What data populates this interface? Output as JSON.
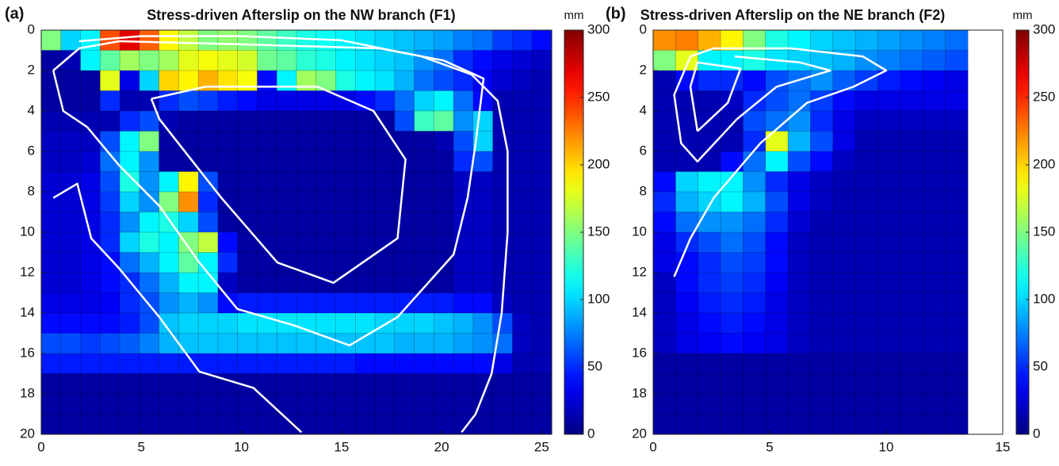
{
  "chart_data": [
    {
      "type": "heatmap",
      "panel_label": "(a)",
      "title": "Stress-driven Afterslip on the NW branch (F1)",
      "colorbar_label": "mm",
      "colormap": "jet",
      "y_reversed": true,
      "xlim": [
        0,
        25.5
      ],
      "ylim": [
        0,
        20
      ],
      "grid_xlim": [
        0,
        25.5
      ],
      "xticks": [
        0,
        5,
        10,
        15,
        20,
        25
      ],
      "yticks": [
        0,
        2,
        4,
        6,
        8,
        10,
        12,
        14,
        16,
        18,
        20
      ],
      "clim": [
        0,
        300
      ],
      "cticks": [
        0,
        50,
        100,
        150,
        200,
        250,
        300
      ],
      "z": [
        [
          150,
          100,
          110,
          240,
          270,
          235,
          190,
          170,
          150,
          155,
          150,
          140,
          130,
          120,
          115,
          110,
          105,
          100,
          95,
          90,
          85,
          75,
          70,
          55,
          50,
          40
        ],
        [
          10,
          15,
          110,
          140,
          160,
          150,
          160,
          180,
          185,
          180,
          175,
          145,
          140,
          125,
          120,
          110,
          105,
          100,
          95,
          80,
          70,
          50,
          40,
          30,
          25,
          20
        ],
        [
          10,
          10,
          10,
          180,
          30,
          100,
          200,
          190,
          210,
          195,
          185,
          40,
          110,
          160,
          150,
          120,
          110,
          105,
          90,
          70,
          60,
          50,
          35,
          25,
          20,
          15
        ],
        [
          10,
          10,
          10,
          50,
          15,
          15,
          50,
          60,
          55,
          45,
          40,
          30,
          30,
          30,
          30,
          30,
          40,
          50,
          70,
          100,
          110,
          70,
          40,
          15,
          15,
          15
        ],
        [
          15,
          15,
          15,
          15,
          50,
          60,
          15,
          10,
          10,
          10,
          10,
          10,
          10,
          10,
          10,
          10,
          10,
          10,
          60,
          130,
          140,
          80,
          100,
          15,
          15,
          15
        ],
        [
          20,
          20,
          20,
          60,
          110,
          150,
          10,
          10,
          10,
          10,
          10,
          10,
          10,
          10,
          10,
          10,
          10,
          10,
          10,
          10,
          15,
          60,
          100,
          15,
          15,
          15
        ],
        [
          20,
          20,
          25,
          70,
          110,
          80,
          10,
          10,
          10,
          10,
          10,
          10,
          10,
          10,
          10,
          10,
          10,
          10,
          10,
          10,
          10,
          50,
          60,
          15,
          15,
          15
        ],
        [
          25,
          25,
          30,
          60,
          120,
          80,
          110,
          190,
          60,
          10,
          10,
          10,
          10,
          10,
          10,
          10,
          10,
          10,
          10,
          10,
          10,
          20,
          20,
          15,
          15,
          15
        ],
        [
          25,
          25,
          30,
          55,
          100,
          80,
          150,
          220,
          50,
          10,
          10,
          10,
          10,
          10,
          10,
          10,
          10,
          10,
          10,
          10,
          10,
          20,
          20,
          15,
          15,
          15
        ],
        [
          25,
          25,
          30,
          50,
          80,
          110,
          120,
          100,
          60,
          10,
          10,
          10,
          10,
          10,
          10,
          10,
          10,
          10,
          10,
          10,
          10,
          20,
          20,
          15,
          15,
          15
        ],
        [
          25,
          25,
          30,
          50,
          100,
          120,
          110,
          150,
          170,
          40,
          10,
          10,
          10,
          10,
          10,
          10,
          10,
          10,
          10,
          10,
          10,
          20,
          20,
          15,
          15,
          15
        ],
        [
          25,
          25,
          30,
          40,
          70,
          90,
          110,
          140,
          110,
          50,
          10,
          10,
          10,
          10,
          10,
          10,
          10,
          10,
          10,
          10,
          10,
          20,
          20,
          15,
          15,
          15
        ],
        [
          25,
          25,
          30,
          40,
          50,
          70,
          90,
          110,
          110,
          20,
          10,
          10,
          10,
          10,
          10,
          10,
          10,
          10,
          10,
          10,
          10,
          20,
          20,
          15,
          15,
          15
        ],
        [
          30,
          30,
          30,
          35,
          50,
          60,
          80,
          90,
          80,
          40,
          45,
          45,
          45,
          45,
          45,
          45,
          45,
          45,
          45,
          45,
          45,
          40,
          40,
          20,
          15,
          15
        ],
        [
          40,
          40,
          40,
          40,
          45,
          60,
          95,
          100,
          100,
          100,
          105,
          105,
          105,
          105,
          105,
          105,
          105,
          100,
          100,
          100,
          95,
          90,
          80,
          60,
          20,
          15
        ],
        [
          60,
          60,
          55,
          60,
          65,
          75,
          90,
          95,
          95,
          95,
          95,
          95,
          95,
          95,
          95,
          95,
          95,
          95,
          90,
          90,
          90,
          85,
          80,
          70,
          20,
          15
        ],
        [
          45,
          45,
          45,
          45,
          45,
          45,
          45,
          45,
          45,
          45,
          45,
          45,
          45,
          45,
          45,
          45,
          40,
          40,
          40,
          40,
          40,
          40,
          40,
          30,
          15,
          15
        ],
        [
          10,
          10,
          10,
          10,
          10,
          10,
          10,
          10,
          10,
          10,
          10,
          10,
          10,
          10,
          10,
          10,
          10,
          10,
          10,
          10,
          10,
          10,
          10,
          10,
          10,
          10
        ],
        [
          10,
          10,
          10,
          10,
          10,
          10,
          10,
          10,
          10,
          10,
          10,
          10,
          10,
          10,
          10,
          10,
          10,
          10,
          10,
          10,
          10,
          10,
          10,
          10,
          10,
          10
        ],
        [
          10,
          10,
          10,
          10,
          10,
          10,
          10,
          10,
          10,
          10,
          10,
          10,
          10,
          10,
          10,
          10,
          10,
          10,
          10,
          10,
          10,
          10,
          10,
          10,
          10,
          10
        ]
      ],
      "contours": [
        {
          "x": [
            0.6,
            1.8,
            2.5,
            3.9,
            5.9,
            7.9,
            10.6,
            13
          ],
          "y": [
            8.3,
            7.6,
            10.3,
            11.8,
            14.2,
            16.9,
            17.7,
            19.9
          ]
        },
        {
          "x": [
            0.6,
            1.1,
            2.3,
            3.9,
            5.9,
            7.9,
            9.8,
            12.6,
            15.4,
            17.8,
            20.6,
            21.3,
            21.7,
            22.1,
            20.1,
            16.9,
            9.8,
            3.9,
            1.9,
            0.6
          ],
          "y": [
            2,
            4,
            4.8,
            6.7,
            8.7,
            11.5,
            13.8,
            14.6,
            15.6,
            14.2,
            11.1,
            8.3,
            5.6,
            2.4,
            1.5,
            0.9,
            0.7,
            0.55,
            0.9,
            2
          ]
        },
        {
          "x": [
            5.5,
            8.2,
            13.8,
            16.6,
            18.2,
            17.8,
            14.6,
            11.8,
            9,
            5.9,
            5.5
          ],
          "y": [
            3.4,
            2.8,
            2.8,
            4,
            6.4,
            10.3,
            12.5,
            11.5,
            8.3,
            4.4,
            3.4
          ]
        },
        {
          "x": [
            1.9,
            5,
            10,
            15,
            19,
            21.5,
            22.8,
            23.3,
            23.3,
            23,
            22.5,
            21.7,
            21
          ],
          "y": [
            0.55,
            0.3,
            0.3,
            0.5,
            1.3,
            2.2,
            3.5,
            6,
            10,
            14,
            17,
            19,
            19.9
          ]
        }
      ]
    },
    {
      "type": "heatmap",
      "panel_label": "(b)",
      "title": "Stress-driven Afterslip on the NE branch (F2)",
      "colorbar_label": "mm",
      "colormap": "jet",
      "y_reversed": true,
      "xlim": [
        0,
        15
      ],
      "ylim": [
        0,
        20
      ],
      "grid_xlim": [
        0,
        13.5
      ],
      "xticks": [
        0,
        5,
        10,
        15
      ],
      "yticks": [
        0,
        2,
        4,
        6,
        8,
        10,
        12,
        14,
        16,
        18,
        20
      ],
      "clim": [
        0,
        300
      ],
      "cticks": [
        0,
        50,
        100,
        150,
        200,
        250,
        300
      ],
      "z": [
        [
          220,
          225,
          210,
          190,
          150,
          120,
          110,
          100,
          95,
          90,
          85,
          80,
          75,
          70
        ],
        [
          150,
          180,
          110,
          110,
          120,
          105,
          100,
          95,
          90,
          80,
          75,
          70,
          65,
          60
        ],
        [
          15,
          40,
          50,
          50,
          40,
          60,
          70,
          80,
          65,
          55,
          45,
          40,
          35,
          30
        ],
        [
          15,
          15,
          15,
          20,
          50,
          60,
          70,
          55,
          40,
          30,
          30,
          30,
          30,
          30
        ],
        [
          15,
          15,
          15,
          15,
          60,
          70,
          80,
          50,
          30,
          20,
          20,
          20,
          20,
          20
        ],
        [
          15,
          15,
          15,
          15,
          50,
          180,
          90,
          60,
          30,
          15,
          15,
          15,
          15,
          15
        ],
        [
          15,
          15,
          15,
          40,
          70,
          110,
          60,
          40,
          20,
          15,
          15,
          15,
          15,
          15
        ],
        [
          40,
          100,
          110,
          110,
          80,
          50,
          30,
          20,
          15,
          15,
          15,
          15,
          15,
          15
        ],
        [
          50,
          90,
          100,
          110,
          90,
          60,
          30,
          20,
          15,
          15,
          15,
          15,
          15,
          15
        ],
        [
          40,
          70,
          80,
          80,
          70,
          50,
          25,
          15,
          15,
          15,
          15,
          15,
          15,
          15
        ],
        [
          30,
          50,
          60,
          70,
          60,
          40,
          20,
          15,
          15,
          15,
          15,
          15,
          15,
          15
        ],
        [
          30,
          40,
          50,
          60,
          55,
          40,
          20,
          15,
          15,
          15,
          15,
          15,
          15,
          15
        ],
        [
          20,
          40,
          50,
          55,
          50,
          35,
          20,
          15,
          15,
          15,
          15,
          15,
          15,
          15
        ],
        [
          20,
          35,
          45,
          50,
          45,
          30,
          20,
          15,
          15,
          15,
          15,
          15,
          15,
          15
        ],
        [
          20,
          30,
          40,
          45,
          40,
          30,
          20,
          15,
          15,
          15,
          15,
          15,
          15,
          15
        ],
        [
          20,
          30,
          35,
          40,
          35,
          30,
          20,
          15,
          15,
          15,
          15,
          15,
          15,
          15
        ],
        [
          10,
          10,
          10,
          10,
          10,
          10,
          10,
          10,
          10,
          10,
          10,
          10,
          10,
          10
        ],
        [
          10,
          10,
          10,
          10,
          10,
          10,
          10,
          10,
          10,
          10,
          10,
          10,
          10,
          10
        ],
        [
          10,
          10,
          10,
          10,
          10,
          10,
          10,
          10,
          10,
          10,
          10,
          10,
          10,
          10
        ],
        [
          10,
          10,
          10,
          10,
          10,
          10,
          10,
          10,
          10,
          10,
          10,
          10,
          10,
          10
        ]
      ],
      "contours": [
        {
          "x": [
            0.9,
            1.6,
            2.6,
            4.6,
            6.6,
            8.6,
            10,
            9,
            5.9,
            2.6,
            1.6,
            0.9,
            1.2,
            1.9,
            3.6,
            5.3,
            7.6,
            6.3,
            3.5
          ],
          "y": [
            12.2,
            10.3,
            8.3,
            5.6,
            3.6,
            2.8,
            2,
            1.3,
            0.9,
            0.9,
            1.3,
            3.2,
            5.6,
            6.5,
            4.4,
            2.8,
            2,
            1.6,
            1.3
          ]
        },
        {
          "x": [
            1.9,
            1.6,
            1.9,
            3.75,
            3.2,
            1.9
          ],
          "y": [
            5,
            2.8,
            1.6,
            1.9,
            3.6,
            5
          ]
        }
      ]
    }
  ]
}
